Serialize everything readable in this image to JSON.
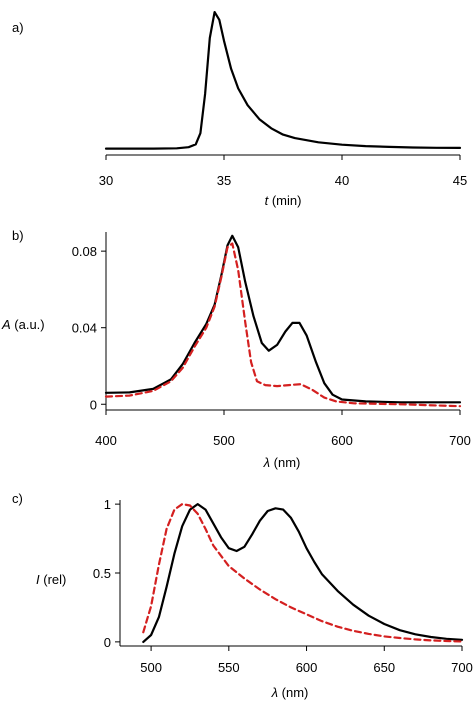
{
  "chart_data": [
    {
      "panel": "a)",
      "type": "line",
      "xlabel": "t (min)",
      "xlabel_var": "t",
      "xlabel_unit": " (min)",
      "ylabel": "",
      "xlim": [
        30,
        45
      ],
      "ylim": [
        0,
        1.0
      ],
      "xticks": [
        30,
        35,
        40,
        45
      ],
      "yticks": [],
      "grid": false,
      "series": [
        {
          "color": "#000000",
          "dash": false,
          "points": [
            [
              30,
              0.01
            ],
            [
              32,
              0.01
            ],
            [
              33,
              0.012
            ],
            [
              33.5,
              0.02
            ],
            [
              33.8,
              0.04
            ],
            [
              34.0,
              0.12
            ],
            [
              34.2,
              0.4
            ],
            [
              34.4,
              0.8
            ],
            [
              34.6,
              0.985
            ],
            [
              34.8,
              0.93
            ],
            [
              35.0,
              0.78
            ],
            [
              35.3,
              0.58
            ],
            [
              35.6,
              0.44
            ],
            [
              36.0,
              0.32
            ],
            [
              36.5,
              0.22
            ],
            [
              37.0,
              0.155
            ],
            [
              37.5,
              0.11
            ],
            [
              38.0,
              0.085
            ],
            [
              39.0,
              0.055
            ],
            [
              40.0,
              0.038
            ],
            [
              41.0,
              0.028
            ],
            [
              42.0,
              0.022
            ],
            [
              43.0,
              0.018
            ],
            [
              44.0,
              0.016
            ],
            [
              45.0,
              0.015
            ]
          ]
        }
      ]
    },
    {
      "panel": "b)",
      "type": "line",
      "xlabel": "λ (nm)",
      "xlabel_var": "λ",
      "xlabel_unit": " (nm)",
      "ylabel": "A (a.u.)",
      "ylabel_var": "A",
      "ylabel_unit": " (a.u.)",
      "xlim": [
        400,
        700
      ],
      "ylim": [
        -0.003,
        0.09
      ],
      "xticks": [
        400,
        500,
        600,
        700
      ],
      "yticks": [
        0,
        0.04,
        0.08
      ],
      "ytick_labels": [
        "0",
        "0.04",
        "0.08"
      ],
      "grid": false,
      "series": [
        {
          "color": "#000000",
          "dash": false,
          "points": [
            [
              400,
              0.006
            ],
            [
              420,
              0.0062
            ],
            [
              440,
              0.008
            ],
            [
              455,
              0.013
            ],
            [
              465,
              0.021
            ],
            [
              475,
              0.032
            ],
            [
              485,
              0.042
            ],
            [
              492,
              0.052
            ],
            [
              498,
              0.068
            ],
            [
              503,
              0.083
            ],
            [
              507,
              0.088
            ],
            [
              512,
              0.082
            ],
            [
              518,
              0.064
            ],
            [
              525,
              0.046
            ],
            [
              532,
              0.032
            ],
            [
              538,
              0.028
            ],
            [
              545,
              0.031
            ],
            [
              552,
              0.038
            ],
            [
              558,
              0.0425
            ],
            [
              564,
              0.0425
            ],
            [
              570,
              0.036
            ],
            [
              578,
              0.022
            ],
            [
              585,
              0.011
            ],
            [
              592,
              0.005
            ],
            [
              600,
              0.0025
            ],
            [
              620,
              0.0015
            ],
            [
              650,
              0.001
            ],
            [
              700,
              0.001
            ]
          ]
        },
        {
          "color": "#d42020",
          "dash": true,
          "points": [
            [
              400,
              0.004
            ],
            [
              420,
              0.0045
            ],
            [
              440,
              0.007
            ],
            [
              455,
              0.012
            ],
            [
              465,
              0.019
            ],
            [
              475,
              0.03
            ],
            [
              485,
              0.04
            ],
            [
              492,
              0.051
            ],
            [
              498,
              0.067
            ],
            [
              503,
              0.082
            ],
            [
              507,
              0.084
            ],
            [
              512,
              0.07
            ],
            [
              518,
              0.043
            ],
            [
              523,
              0.022
            ],
            [
              528,
              0.012
            ],
            [
              535,
              0.01
            ],
            [
              545,
              0.0095
            ],
            [
              555,
              0.01
            ],
            [
              565,
              0.0105
            ],
            [
              575,
              0.0075
            ],
            [
              585,
              0.0035
            ],
            [
              595,
              0.0015
            ],
            [
              610,
              0.0005
            ],
            [
              650,
              0.0
            ],
            [
              700,
              -0.001
            ]
          ]
        }
      ]
    },
    {
      "panel": "c)",
      "type": "line",
      "xlabel": "λ (nm)",
      "xlabel_var": "λ",
      "xlabel_unit": " (nm)",
      "ylabel": "I (rel)",
      "ylabel_var": "I",
      "ylabel_unit": " (rel)",
      "xlim": [
        480,
        700
      ],
      "ylim": [
        -0.03,
        1.03
      ],
      "xticks": [
        500,
        550,
        600,
        650,
        700
      ],
      "yticks": [
        0,
        0.5,
        1
      ],
      "ytick_labels": [
        "0",
        "0.5",
        "1"
      ],
      "grid": false,
      "series": [
        {
          "color": "#000000",
          "dash": false,
          "points": [
            [
              495,
              0.0
            ],
            [
              500,
              0.05
            ],
            [
              505,
              0.18
            ],
            [
              510,
              0.4
            ],
            [
              515,
              0.64
            ],
            [
              520,
              0.84
            ],
            [
              525,
              0.96
            ],
            [
              530,
              1.0
            ],
            [
              535,
              0.96
            ],
            [
              540,
              0.86
            ],
            [
              545,
              0.76
            ],
            [
              550,
              0.68
            ],
            [
              555,
              0.66
            ],
            [
              560,
              0.69
            ],
            [
              565,
              0.78
            ],
            [
              570,
              0.88
            ],
            [
              575,
              0.95
            ],
            [
              580,
              0.97
            ],
            [
              585,
              0.96
            ],
            [
              590,
              0.9
            ],
            [
              595,
              0.8
            ],
            [
              600,
              0.68
            ],
            [
              605,
              0.58
            ],
            [
              610,
              0.49
            ],
            [
              620,
              0.37
            ],
            [
              630,
              0.27
            ],
            [
              640,
              0.19
            ],
            [
              650,
              0.13
            ],
            [
              660,
              0.085
            ],
            [
              670,
              0.055
            ],
            [
              680,
              0.035
            ],
            [
              690,
              0.022
            ],
            [
              700,
              0.015
            ]
          ]
        },
        {
          "color": "#d42020",
          "dash": true,
          "points": [
            [
              495,
              0.07
            ],
            [
              500,
              0.26
            ],
            [
              505,
              0.56
            ],
            [
              510,
              0.82
            ],
            [
              515,
              0.96
            ],
            [
              520,
              1.0
            ],
            [
              525,
              0.99
            ],
            [
              530,
              0.93
            ],
            [
              535,
              0.82
            ],
            [
              540,
              0.7
            ],
            [
              550,
              0.55
            ],
            [
              560,
              0.46
            ],
            [
              570,
              0.38
            ],
            [
              580,
              0.31
            ],
            [
              590,
              0.25
            ],
            [
              600,
              0.2
            ],
            [
              610,
              0.15
            ],
            [
              620,
              0.11
            ],
            [
              630,
              0.08
            ],
            [
              640,
              0.058
            ],
            [
              650,
              0.04
            ],
            [
              660,
              0.028
            ],
            [
              670,
              0.018
            ],
            [
              680,
              0.011
            ],
            [
              690,
              0.006
            ],
            [
              700,
              0.003
            ]
          ]
        }
      ]
    }
  ]
}
